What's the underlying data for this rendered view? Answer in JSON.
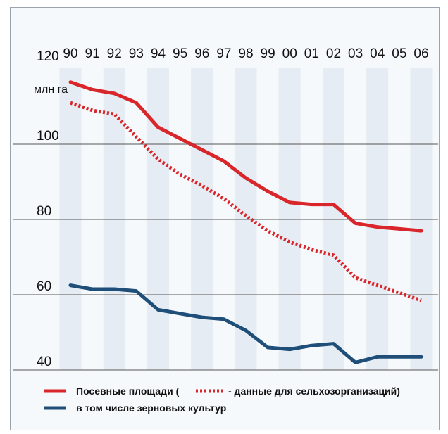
{
  "chart_data": {
    "type": "line",
    "unit_label": "млн га",
    "categories": [
      "90",
      "91",
      "92",
      "93",
      "94",
      "95",
      "96",
      "97",
      "98",
      "99",
      "00",
      "01",
      "02",
      "03",
      "04",
      "05",
      "06"
    ],
    "y_ticks": [
      "120",
      "100",
      "80",
      "60",
      "40"
    ],
    "y_tick_values": [
      120,
      100,
      80,
      60,
      40
    ],
    "ylim": [
      40,
      120
    ],
    "grid": "horizontal",
    "legend_position": "bottom-left",
    "legend": {
      "line1_part1": "Посевные площади (",
      "line1_part2": "- данные для сельхозорганизаций)",
      "line2": "в том числе зерновых культур"
    },
    "series": [
      {
        "key": "sown_total",
        "style": "solid",
        "color": "#d8262a",
        "values": [
          116.5,
          114.5,
          113.5,
          111,
          104.5,
          101.5,
          98.5,
          95.5,
          91,
          87.5,
          84.5,
          84,
          84,
          79,
          78,
          77.5,
          77
        ]
      },
      {
        "key": "sown_agri_orgs",
        "style": "dotted",
        "color": "#d8262a",
        "values": [
          111,
          109,
          108,
          102,
          96,
          92,
          89,
          85.5,
          81,
          77,
          74,
          72,
          70.5,
          64.5,
          62.5,
          60.5,
          58.5
        ]
      },
      {
        "key": "grain",
        "style": "solid",
        "color": "#1f4e79",
        "values": [
          62.5,
          61.5,
          61.5,
          61,
          56,
          55,
          54,
          53.5,
          50.5,
          46,
          45.5,
          46.5,
          47,
          42,
          43.5,
          43.5,
          43.5
        ]
      }
    ]
  }
}
